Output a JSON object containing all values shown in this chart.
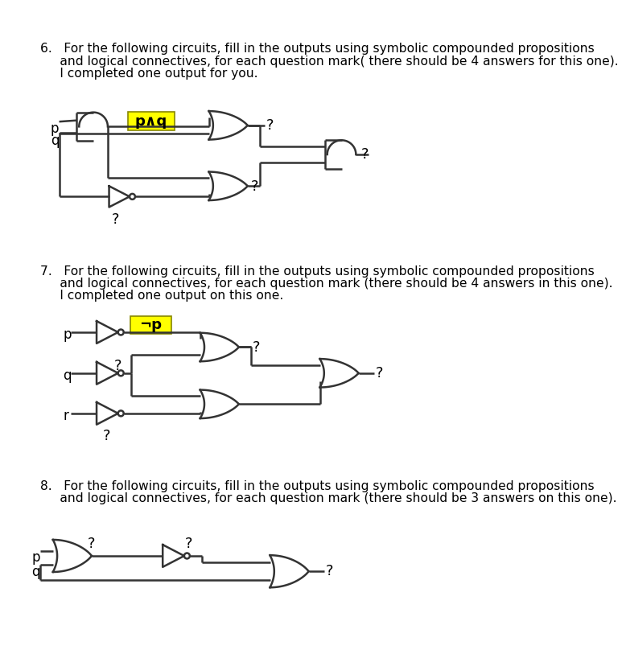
{
  "bg_color": "#ffffff",
  "text_color": "#000000",
  "line_color": "#333333",
  "highlight_color": "#ffff00",
  "q6_text_line1": "6.   For the following circuits, fill in the outputs using symbolic compounded propositions",
  "q6_text_line2": "     and logical connectives, for each question mark( there should be 4 answers for this one).",
  "q6_text_line3": "     I completed one output for you.",
  "q7_text_line1": "7.   For the following circuits, fill in the outputs using symbolic compounded propositions",
  "q7_text_line2": "     and logical connectives, for each question mark (there should be 4 answers in this one).",
  "q7_text_line3": "     I completed one output on this one.",
  "q8_text_line1": "8.   For the following circuits, fill in the outputs using symbolic compounded propositions",
  "q8_text_line2": "     and logical connectives, for each question mark (there should be 3 answers on this one).",
  "highlight6_label": "p∧q",
  "highlight7_label": "¬p"
}
